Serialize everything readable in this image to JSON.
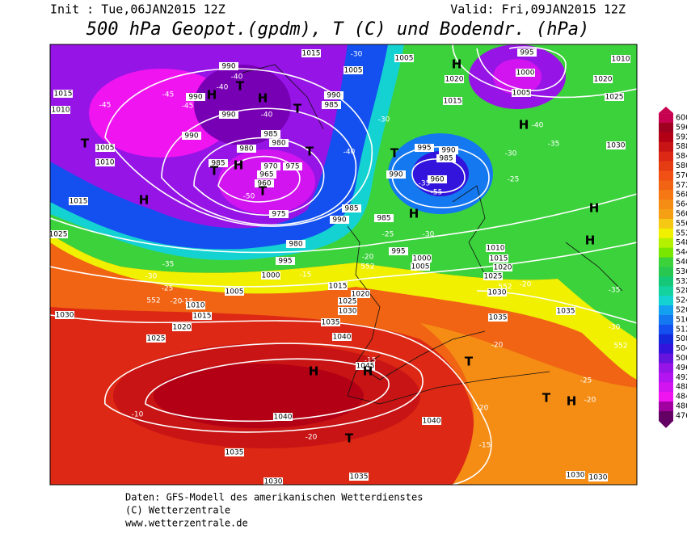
{
  "header": {
    "init": "Init : Tue,06JAN2015 12Z",
    "valid": "Valid: Fri,09JAN2015 12Z",
    "title": "500 hPa Geopot.(gpdm), T (C) und Bodendr. (hPa)"
  },
  "colorbar": {
    "levels": [
      600,
      596,
      592,
      588,
      584,
      580,
      576,
      572,
      568,
      564,
      560,
      556,
      552,
      548,
      544,
      540,
      536,
      532,
      528,
      524,
      520,
      516,
      512,
      508,
      504,
      500,
      496,
      492,
      488,
      484,
      480,
      476
    ],
    "colors": [
      "#c80050",
      "#a00020",
      "#b40014",
      "#c81414",
      "#dc2814",
      "#e63c14",
      "#f05014",
      "#f06414",
      "#f57814",
      "#f58c14",
      "#f5a014",
      "#f5c814",
      "#f0f000",
      "#b4f000",
      "#78e600",
      "#3cd23c",
      "#28c850",
      "#14c878",
      "#14d2a0",
      "#14d2d2",
      "#14a0f0",
      "#1478f0",
      "#1450f0",
      "#1428dc",
      "#3214dc",
      "#6414dc",
      "#9614e6",
      "#b414f0",
      "#d214f0",
      "#f014f0",
      "#a000a0",
      "#640064"
    ]
  },
  "map": {
    "pressure_labels": [
      "1015",
      "1005",
      "995",
      "1010",
      "1020",
      "1000",
      "1020",
      "1005",
      "1025",
      "1015",
      "1030",
      "990",
      "990",
      "990",
      "1010",
      "1015",
      "1005",
      "990",
      "985",
      "985",
      "980",
      "980",
      "990",
      "985",
      "970",
      "965",
      "960",
      "975",
      "1005",
      "1010",
      "1015",
      "1025",
      "975",
      "980",
      "995",
      "985",
      "990",
      "990",
      "995",
      "990",
      "985",
      "960",
      "985",
      "1000",
      "1005",
      "995",
      "1010",
      "1015",
      "1020",
      "1025",
      "1000",
      "1005",
      "1015",
      "1020",
      "1025",
      "1030",
      "1035",
      "1040",
      "1010",
      "1015",
      "1020",
      "1025",
      "1030",
      "1030",
      "1035",
      "1035",
      "1045",
      "1040",
      "1040",
      "1035",
      "1030",
      "1035",
      "1030",
      "1030"
    ],
    "temperature_labels": [
      "-45",
      "-45",
      "-45",
      "-40",
      "-40",
      "-40",
      "-40",
      "-30",
      "-30",
      "-35",
      "-30",
      "-30",
      "-35",
      "-40",
      "-25",
      "-25",
      "-20",
      "-15",
      "-30",
      "-25",
      "-20",
      "-15",
      "-35",
      "-20",
      "-25",
      "-20",
      "-20",
      "-15",
      "-20",
      "-10",
      "-15",
      "-30",
      "-35",
      "-20",
      "552",
      "552",
      "552",
      "552",
      "-55",
      "-50"
    ],
    "pressure_centers": [
      "H",
      "H",
      "H",
      "H",
      "H",
      "H",
      "H",
      "H",
      "H",
      "H",
      "H",
      "H",
      "T",
      "T",
      "T",
      "T",
      "T",
      "T",
      "T",
      "T",
      "T",
      "T"
    ]
  },
  "footer": {
    "source": "Daten: GFS-Modell des amerikanischen Wetterdienstes",
    "copyright": "(C) Wetterzentrale",
    "url": "www.wetterzentrale.de"
  }
}
